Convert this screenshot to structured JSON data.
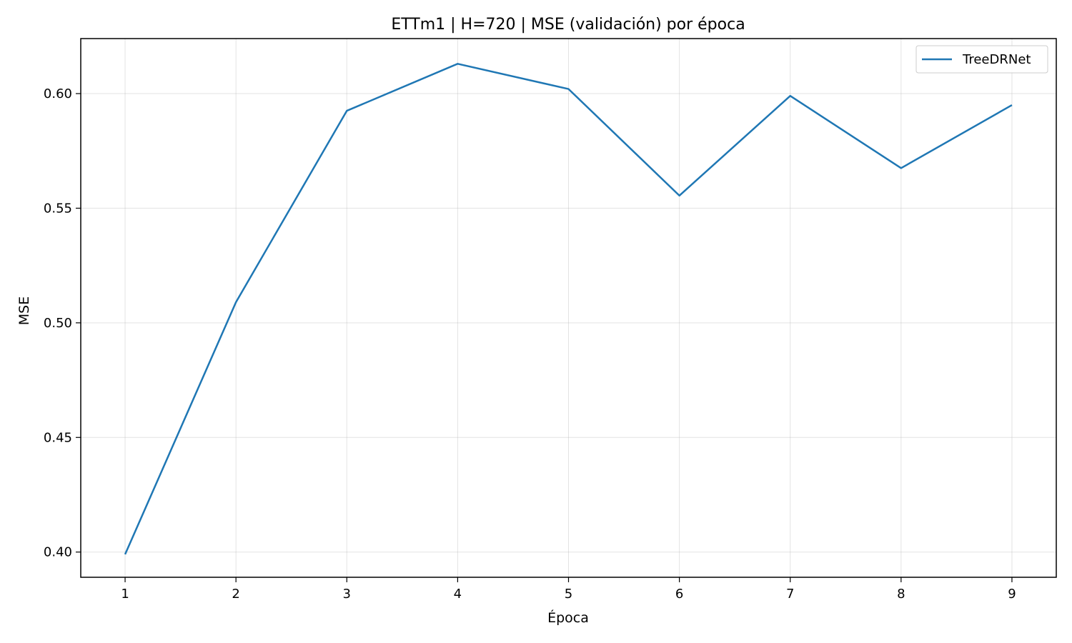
{
  "chart_data": {
    "type": "line",
    "title": "ETTm1 | H=720 | MSE (validación) por época",
    "xlabel": "Época",
    "ylabel": "MSE",
    "x": [
      1,
      2,
      3,
      4,
      5,
      6,
      7,
      8,
      9
    ],
    "x_ticks": [
      "1",
      "2",
      "3",
      "4",
      "5",
      "6",
      "7",
      "8",
      "9"
    ],
    "y_ticks": [
      "0.40",
      "0.45",
      "0.50",
      "0.55",
      "0.60"
    ],
    "xlim": [
      0.6,
      9.4
    ],
    "ylim": [
      0.389,
      0.624
    ],
    "grid": true,
    "legend_position": "top-right",
    "series": [
      {
        "name": "TreeDRNet",
        "color": "#1f77b4",
        "values": [
          0.399,
          0.509,
          0.5925,
          0.613,
          0.602,
          0.5555,
          0.599,
          0.5675,
          0.595
        ]
      }
    ]
  }
}
